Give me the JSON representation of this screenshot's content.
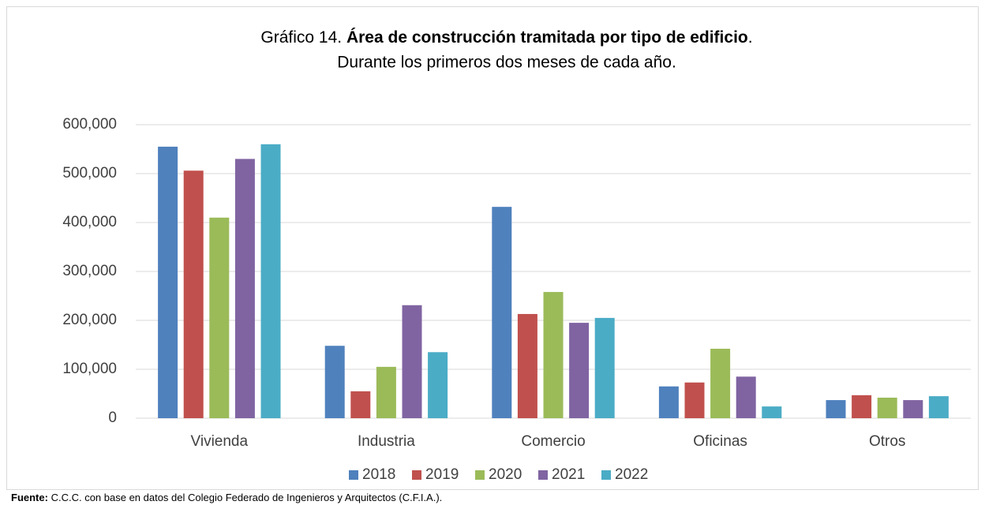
{
  "chart_data": {
    "type": "bar",
    "title": {
      "prefix": "Gráfico 14.",
      "bold": "Área de construcción tramitada por tipo de edificio",
      "suffix": "."
    },
    "subtitle": "Durante los primeros dos meses de cada año.",
    "categories": [
      "Vivienda",
      "Industria",
      "Comercio",
      "Oficinas",
      "Otros"
    ],
    "series": [
      {
        "name": "2018",
        "color": "#4f81bd",
        "values": [
          555000,
          148000,
          432000,
          65000,
          37000
        ]
      },
      {
        "name": "2019",
        "color": "#c0504d",
        "values": [
          506000,
          55000,
          213000,
          73000,
          47000
        ]
      },
      {
        "name": "2020",
        "color": "#9bbb59",
        "values": [
          410000,
          105000,
          258000,
          142000,
          42000
        ]
      },
      {
        "name": "2021",
        "color": "#8064a2",
        "values": [
          530000,
          231000,
          195000,
          85000,
          37000
        ]
      },
      {
        "name": "2022",
        "color": "#4bacc6",
        "values": [
          560000,
          135000,
          205000,
          24000,
          45000
        ]
      }
    ],
    "ylim": [
      0,
      600000
    ],
    "yticks": [
      0,
      {
        "value": 100000,
        "label": "100,000"
      },
      {
        "value": 200000,
        "label": "200,000"
      },
      {
        "value": 300000,
        "label": "300,000"
      },
      {
        "value": 400000,
        "label": "400,000"
      },
      {
        "value": 500000,
        "label": "500,000"
      },
      {
        "value": 600000,
        "label": "600,000"
      }
    ],
    "grid": true,
    "legend": "bottom",
    "source": {
      "label": "Fuente:",
      "text": "C.C.C. con base en datos del Colegio Federado de Ingenieros y Arquitectos (C.F.I.A.)."
    }
  }
}
